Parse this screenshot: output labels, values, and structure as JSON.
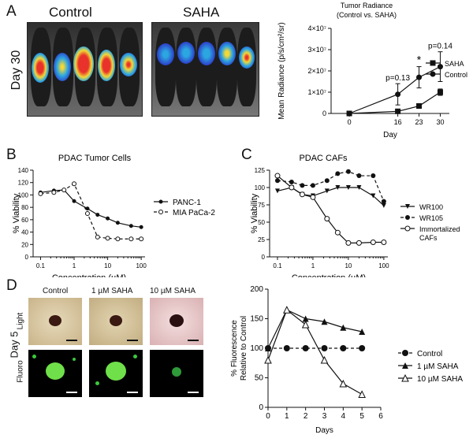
{
  "panel_letters": {
    "A": "A",
    "B": "B",
    "C": "C",
    "D": "D"
  },
  "panelA": {
    "group_labels": [
      "Control",
      "SAHA"
    ],
    "timepoint": "Day 30",
    "colors": {
      "high": "#e8322b",
      "mid": "#f2d836",
      "low": "#2ca6e0",
      "lowest": "#2b36c8"
    }
  },
  "panelD_images": {
    "column_labels": [
      "Control",
      "1 µM SAHA",
      "10 µM SAHA"
    ],
    "row_labels": [
      "Light",
      "Fluoro"
    ],
    "timepoint": "Day 5"
  },
  "chart_data": [
    {
      "id": "A",
      "type": "line",
      "title": "Tumor Radiance\n(Control vs. SAHA)",
      "xlabel": "Day",
      "ylabel": "Mean Radiance (p/s/cm²/sr)",
      "x": [
        0,
        16,
        23,
        30
      ],
      "x_ticks": [
        "0",
        "16",
        "23",
        "30"
      ],
      "y_ticks": [
        "0",
        "1×10⁷",
        "2×10⁷",
        "3×10⁷",
        "4×10⁷"
      ],
      "ylim": [
        0,
        40000000
      ],
      "series": [
        {
          "name": "SAHA",
          "marker": "square",
          "values": [
            0,
            1000000,
            3500000,
            10000000
          ],
          "err": [
            0,
            300000,
            1000000,
            1500000
          ]
        },
        {
          "name": "Control",
          "marker": "circle",
          "values": [
            0,
            9000000,
            17000000,
            22000000
          ],
          "err": [
            0,
            5000000,
            5000000,
            7000000
          ]
        }
      ],
      "annotations": [
        {
          "x": 16,
          "text": "p=0.13"
        },
        {
          "x": 23,
          "text": "*"
        },
        {
          "x": 30,
          "text": "p=0.14"
        }
      ],
      "legend_position": "right"
    },
    {
      "id": "B",
      "type": "line",
      "title": "PDAC Tumor Cells",
      "xlabel": "Concentration (µM)",
      "ylabel": "% Viability",
      "xscale": "log",
      "x": [
        0.1,
        0.25,
        0.5,
        1,
        2.5,
        5,
        10,
        20,
        50,
        100
      ],
      "x_ticks": [
        "0.1",
        "1",
        "10",
        "100"
      ],
      "y_ticks": [
        "0",
        "20",
        "40",
        "60",
        "80",
        "100",
        "120",
        "140"
      ],
      "ylim": [
        0,
        140
      ],
      "series": [
        {
          "name": "PANC-1",
          "marker": "filled-circle",
          "dash": "solid",
          "values": [
            104,
            107,
            108,
            90,
            78,
            68,
            62,
            55,
            50,
            48
          ]
        },
        {
          "name": "MIA PaCa-2",
          "marker": "open-circle",
          "dash": "dashed",
          "values": [
            102,
            104,
            108,
            118,
            70,
            32,
            30,
            29,
            29,
            29
          ]
        }
      ],
      "legend_position": "right"
    },
    {
      "id": "C",
      "type": "line",
      "title": "PDAC CAFs",
      "xlabel": "Concentration (µM)",
      "ylabel": "% Viability",
      "xscale": "log",
      "x": [
        0.1,
        0.25,
        0.5,
        1,
        2.5,
        5,
        10,
        20,
        50,
        100
      ],
      "x_ticks": [
        "0.1",
        "1",
        "10",
        "100"
      ],
      "y_ticks": [
        "0",
        "25",
        "50",
        "75",
        "100",
        "125"
      ],
      "ylim": [
        0,
        125
      ],
      "series": [
        {
          "name": "WR100",
          "marker": "triangle-down",
          "dash": "solid",
          "values": [
            95,
            100,
            90,
            88,
            95,
            100,
            100,
            100,
            88,
            74
          ]
        },
        {
          "name": "WR105",
          "marker": "filled-circle",
          "dash": "dashed",
          "values": [
            110,
            108,
            103,
            103,
            110,
            120,
            123,
            117,
            117,
            80
          ]
        },
        {
          "name": "Immortalized CAFs",
          "marker": "open-circle",
          "dash": "solid",
          "values": [
            117,
            100,
            90,
            86,
            55,
            35,
            20,
            20,
            21,
            21
          ]
        }
      ],
      "legend_position": "right"
    },
    {
      "id": "D",
      "type": "line",
      "title": "",
      "xlabel": "Days",
      "ylabel": "% Fluorescence Relative to Control",
      "x": [
        0,
        1,
        2,
        3,
        4,
        5
      ],
      "x_ticks": [
        "0",
        "1",
        "2",
        "3",
        "4",
        "5",
        "6"
      ],
      "y_ticks": [
        "0",
        "50",
        "100",
        "150",
        "200"
      ],
      "ylim": [
        0,
        200
      ],
      "xlim": [
        0,
        6
      ],
      "series": [
        {
          "name": "Control",
          "marker": "filled-circle",
          "dash": "dashed",
          "values": [
            100,
            100,
            100,
            100,
            100,
            100
          ]
        },
        {
          "name": "1 µM SAHA",
          "marker": "filled-triangle",
          "dash": "solid",
          "values": [
            100,
            165,
            150,
            145,
            135,
            128
          ]
        },
        {
          "name": "10 µM SAHA",
          "marker": "open-triangle",
          "dash": "solid",
          "values": [
            80,
            165,
            140,
            80,
            40,
            22
          ]
        }
      ],
      "legend_position": "right"
    }
  ]
}
